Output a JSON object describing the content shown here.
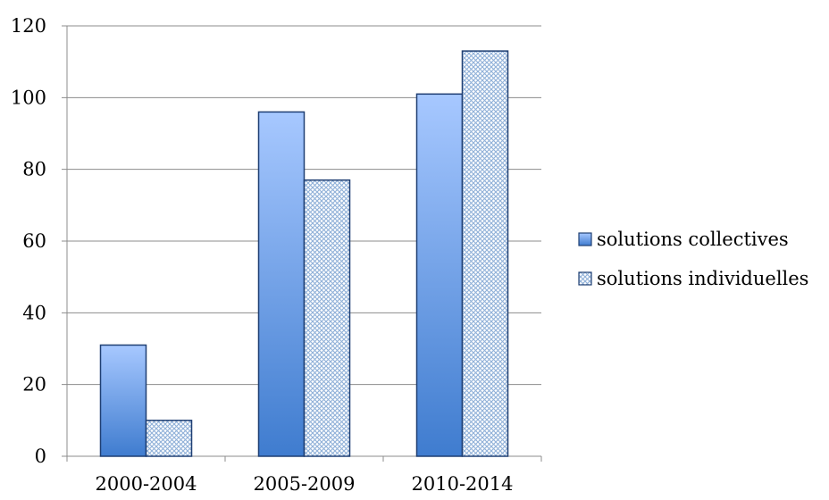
{
  "chart_data": {
    "type": "bar",
    "title": "",
    "xlabel": "",
    "ylabel": "",
    "categories": [
      "2000-2004",
      "2005-2009",
      "2010-2014"
    ],
    "ylim": [
      0,
      120
    ],
    "yticks": [
      0,
      20,
      40,
      60,
      80,
      100,
      120
    ],
    "grid": true,
    "legend_position": "right",
    "series": [
      {
        "name": "solutions collectives",
        "values": [
          31,
          96,
          101
        ],
        "fill": "gradient",
        "color_top": "#a7c8ff",
        "color_bottom": "#3f7ccf",
        "stroke": "#1f3f73"
      },
      {
        "name": "solutions individuelles",
        "values": [
          10,
          77,
          113
        ],
        "fill": "crosshatch",
        "color": "#8fb0d8",
        "stroke": "#1f3f73"
      }
    ]
  }
}
